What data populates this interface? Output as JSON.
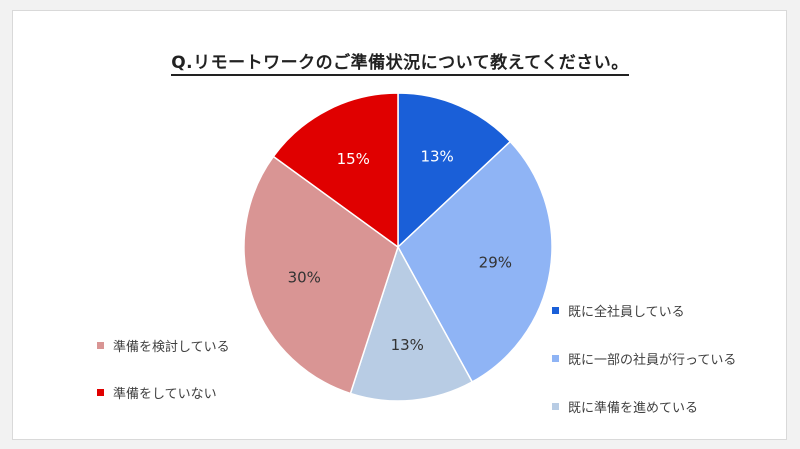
{
  "chart_data": {
    "type": "pie",
    "title": "Q.リモートワークのご準備状況について教えてください。",
    "slices": [
      {
        "label": "既に全社員している",
        "value": 13,
        "display": "13%",
        "color": "#1a5fd8",
        "label_color": "#ffffff"
      },
      {
        "label": "既に一部の社員が行っている",
        "value": 29,
        "display": "29%",
        "color": "#8fb4f5",
        "label_color": "#333333"
      },
      {
        "label": "既に準備を進めている",
        "value": 13,
        "display": "13%",
        "color": "#b8cce4",
        "label_color": "#333333"
      },
      {
        "label": "準備を検討している",
        "value": 30,
        "display": "30%",
        "color": "#d99594",
        "label_color": "#333333"
      },
      {
        "label": "準備をしていない",
        "value": 15,
        "display": "15%",
        "color": "#e00000",
        "label_color": "#ffffff"
      }
    ],
    "legend_right": [
      0,
      1,
      2
    ],
    "legend_left": [
      3,
      4
    ]
  }
}
